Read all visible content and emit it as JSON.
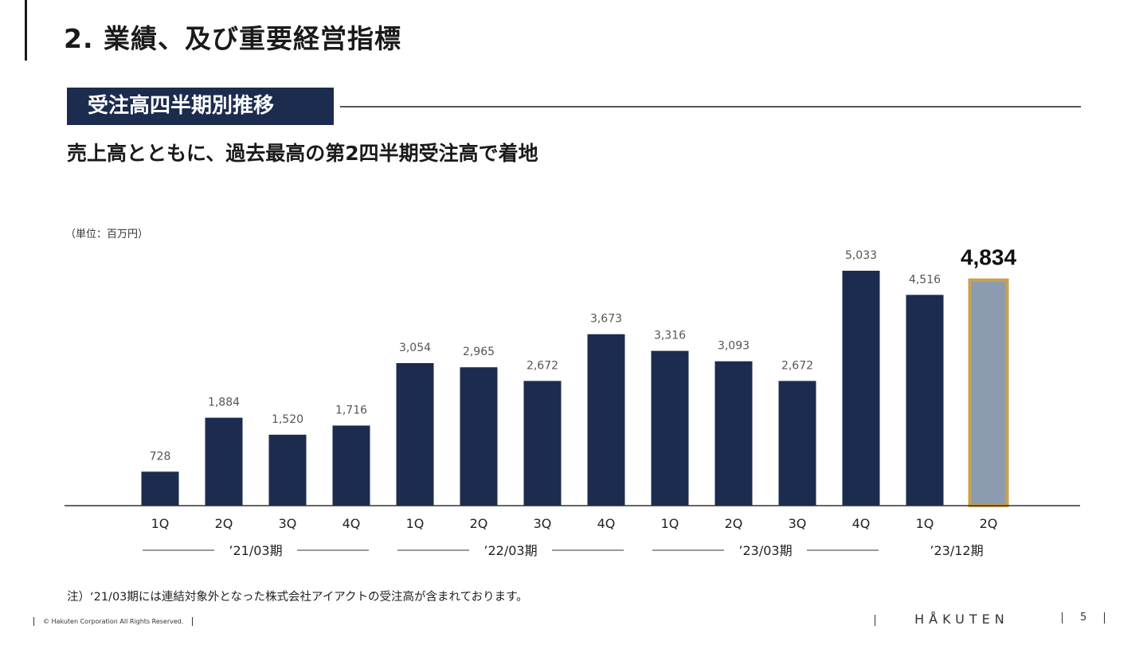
{
  "page": {
    "title": "2. 業績、及び重要経営指標",
    "section_label": "受注高四半期別推移",
    "headline": "売上高とともに、過去最高の第2四半期受注高で着地",
    "unit": "（単位：百万円）",
    "note": "注）‘21/03期には連結対象外となった株式会社アイアクトの受注高が含まれております。",
    "footer": {
      "copyright": "© Hakuten Corporation All Rights Reserved.",
      "brand": "HÅKUTEN",
      "page_number": "5"
    }
  },
  "colors": {
    "bar": "#1b2c4e",
    "highlight_fill": "#8c9bb0",
    "highlight_border": "#c9a24a",
    "axis": "#333333",
    "label": "#555555"
  },
  "chart_data": {
    "type": "bar",
    "categories": [
      "1Q",
      "2Q",
      "3Q",
      "4Q",
      "1Q",
      "2Q",
      "3Q",
      "4Q",
      "1Q",
      "2Q",
      "3Q",
      "4Q",
      "1Q",
      "2Q"
    ],
    "values": [
      728,
      1884,
      1520,
      1716,
      3054,
      2965,
      2672,
      3673,
      3316,
      3093,
      2672,
      5033,
      4516,
      4834
    ],
    "value_labels": [
      "728",
      "1,884",
      "1,520",
      "1,716",
      "3,054",
      "2,965",
      "2,672",
      "3,673",
      "3,316",
      "3,093",
      "2,672",
      "5,033",
      "4,516",
      "4,834"
    ],
    "highlight_index": 13,
    "groups": [
      {
        "label": "’21/03期",
        "start": 0,
        "end": 3
      },
      {
        "label": "’22/03期",
        "start": 4,
        "end": 7
      },
      {
        "label": "’23/03期",
        "start": 8,
        "end": 11
      },
      {
        "label": "’23/12期",
        "start": 12,
        "end": 13
      }
    ],
    "ylim": [
      0,
      5033
    ],
    "grid": false,
    "unit": "百万円"
  }
}
